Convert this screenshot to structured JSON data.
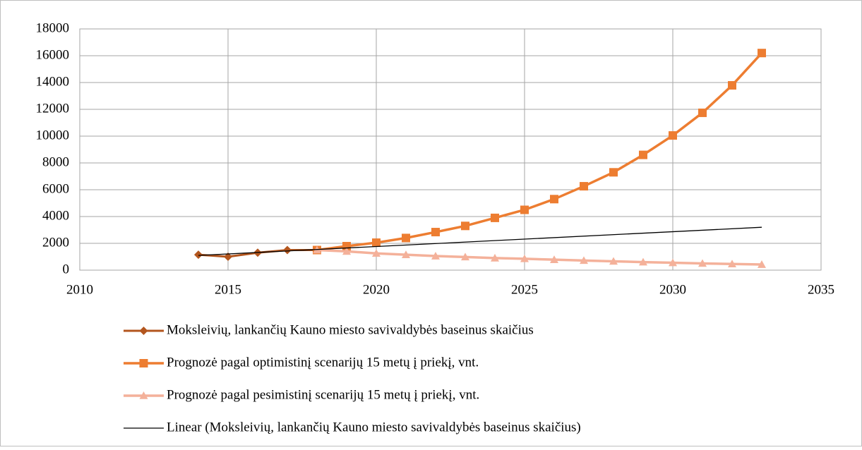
{
  "chart_data": {
    "type": "line",
    "xlim": [
      2010,
      2035
    ],
    "xticks": [
      2010,
      2015,
      2020,
      2025,
      2030,
      2035
    ],
    "ylim": [
      0,
      18000
    ],
    "yticks": [
      0,
      2000,
      4000,
      6000,
      8000,
      10000,
      12000,
      14000,
      16000,
      18000
    ],
    "grid": true,
    "legend": "bottom",
    "series": [
      {
        "name": "Moksleivių, lankančių Kauno miesto savivaldybės baseinus skaičius",
        "color": "#b3561e",
        "marker": "diamond",
        "x": [
          2014,
          2015,
          2016,
          2017,
          2018
        ],
        "values": [
          1150,
          1000,
          1300,
          1500,
          1500
        ]
      },
      {
        "name": "Prognozė pagal optimistinį scenarijų 15 metų į priekį, vnt.",
        "color": "#ed7d31",
        "marker": "square",
        "x": [
          2018,
          2019,
          2020,
          2021,
          2022,
          2023,
          2024,
          2025,
          2026,
          2027,
          2028,
          2029,
          2030,
          2031,
          2032,
          2033
        ],
        "values": [
          1500,
          1790,
          2050,
          2400,
          2840,
          3300,
          3900,
          4500,
          5300,
          6260,
          7300,
          8600,
          10050,
          11740,
          13790,
          16200
        ]
      },
      {
        "name": "Prognozė pagal pesimistinį scenarijų 15 metų į priekį, vnt.",
        "color": "#f4b19a",
        "marker": "triangle",
        "x": [
          2018,
          2019,
          2020,
          2021,
          2022,
          2023,
          2024,
          2025,
          2026,
          2027,
          2028,
          2029,
          2030,
          2031,
          2032,
          2033
        ],
        "values": [
          1500,
          1400,
          1250,
          1150,
          1050,
          980,
          900,
          850,
          780,
          720,
          660,
          600,
          550,
          500,
          460,
          420
        ]
      },
      {
        "name": "Linear (Moksleivių, lankančių Kauno miesto savivaldybės baseinus skaičius)",
        "color": "#000000",
        "marker": "none",
        "x": [
          2014,
          2033
        ],
        "values": [
          1100,
          3200
        ]
      }
    ]
  }
}
